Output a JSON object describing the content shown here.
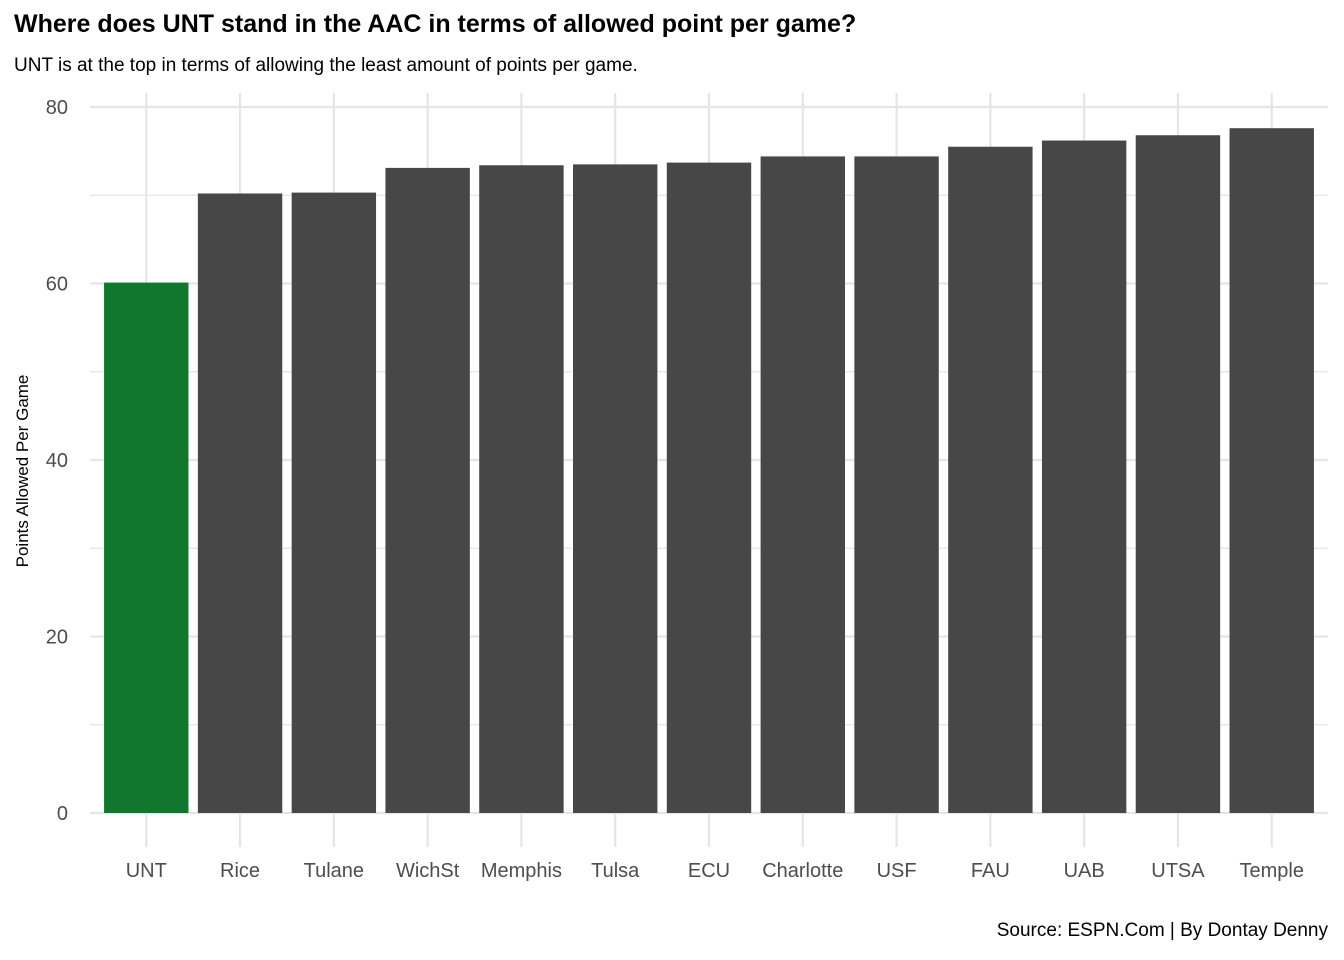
{
  "chart_data": {
    "type": "bar",
    "title": "Where does UNT stand in the AAC in terms of allowed point per game?",
    "subtitle": "UNT is at the top in terms of allowing the least amount of points per game.",
    "caption": "Source: ESPN.Com | By Dontay Denny",
    "xlabel": "",
    "ylabel": "Points Allowed Per Game",
    "categories": [
      "UNT",
      "Rice",
      "Tulane",
      "WichSt",
      "Memphis",
      "Tulsa",
      "ECU",
      "Charlotte",
      "USF",
      "FAU",
      "UAB",
      "UTSA",
      "Temple"
    ],
    "values": [
      60.1,
      70.2,
      70.3,
      73.1,
      73.4,
      73.5,
      73.7,
      74.4,
      74.4,
      75.5,
      76.2,
      76.8,
      77.6
    ],
    "highlight_category": "UNT",
    "highlight_color": "#11772d",
    "bar_color": "#474747",
    "ylim": [
      0,
      80
    ],
    "yticks": [
      0,
      20,
      40,
      60,
      80
    ],
    "grid": true,
    "legend": "none"
  }
}
